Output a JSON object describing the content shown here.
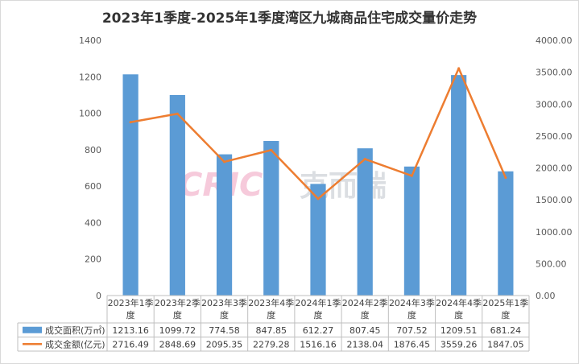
{
  "chart_data": {
    "type": "bar",
    "title": "2023年1季度-2025年1季度湾区九城商品住宅成交量价走势",
    "categories": [
      "2023年1季度",
      "2023年2季度",
      "2023年3季度",
      "2023年4季度",
      "2024年1季度",
      "2024年2季度",
      "2024年3季度",
      "2024年4季度",
      "2025年1季度"
    ],
    "series": [
      {
        "name": "成交面积(万㎡)",
        "type": "bar",
        "axis": "left",
        "color": "#5B9BD5",
        "values": [
          1213.16,
          1099.72,
          774.58,
          847.85,
          612.27,
          807.45,
          707.52,
          1209.51,
          681.24
        ],
        "labels": [
          "1213.16",
          "1099.72",
          "774.58",
          "847.85",
          "612.27",
          "807.45",
          "707.52",
          "1209.51",
          "681.24"
        ]
      },
      {
        "name": "成交金额(亿元)",
        "type": "line",
        "axis": "right",
        "color": "#ED7D31",
        "values": [
          2716.49,
          2848.69,
          2095.35,
          2279.28,
          1516.16,
          2138.04,
          1876.45,
          3559.26,
          1847.05
        ],
        "labels": [
          "2716.49",
          "2848.69",
          "2095.35",
          "2279.28",
          "1516.16",
          "2138.04",
          "1876.45",
          "3559.26",
          "1847.05"
        ]
      }
    ],
    "y_left": {
      "min": 0,
      "max": 1400,
      "ticks": [
        "0",
        "200",
        "400",
        "600",
        "800",
        "1000",
        "1200",
        "1400"
      ]
    },
    "y_right": {
      "min": 0,
      "max": 4000,
      "ticks": [
        "0.00",
        "500.00",
        "1000.00",
        "1500.00",
        "2000.00",
        "2500.00",
        "3000.00",
        "3500.00",
        "4000.00"
      ]
    },
    "grid": false,
    "legend": "data-table"
  },
  "watermark": {
    "latin": "CRIC",
    "cjk": "克而瑞"
  }
}
